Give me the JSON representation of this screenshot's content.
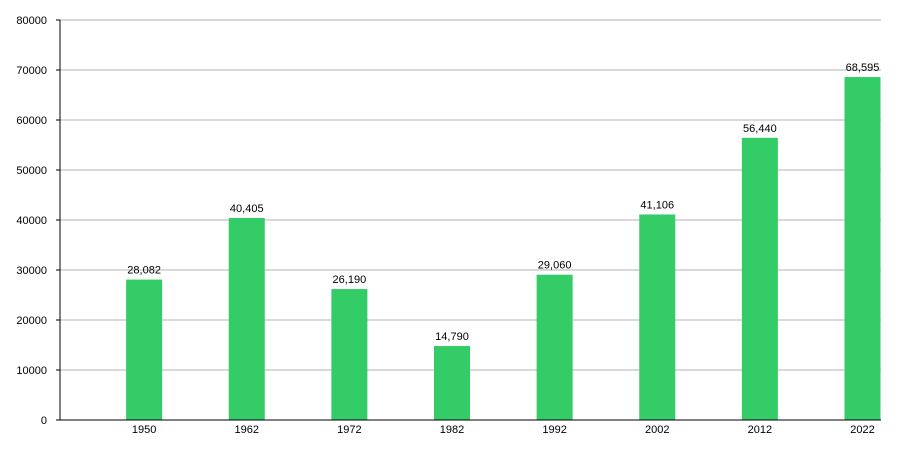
{
  "colors": {
    "bar": "#33cc66",
    "grid": "#b3b3b3",
    "axis": "#000000"
  },
  "chart_data": {
    "type": "bar",
    "categories": [
      "1950",
      "1962",
      "1972",
      "1982",
      "1992",
      "2002",
      "2012",
      "2022"
    ],
    "values": [
      28082,
      40405,
      26190,
      14790,
      29060,
      41106,
      56440,
      68595
    ],
    "data_labels": [
      "28,082",
      "40,405",
      "26,190",
      "14,790",
      "29,060",
      "41,106",
      "56,440",
      "68,595"
    ],
    "y_ticks": [
      "0",
      "10000",
      "20000",
      "30000",
      "40000",
      "50000",
      "60000",
      "70000",
      "80000"
    ],
    "ylim": [
      0,
      80000
    ],
    "grid": true,
    "legend": "none"
  }
}
